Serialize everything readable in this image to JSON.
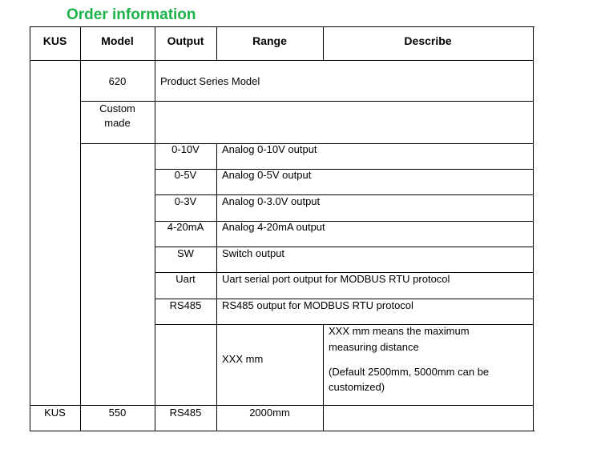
{
  "title": "Order information",
  "headers": [
    "KUS",
    "Model",
    "Output",
    "Range",
    "Describe"
  ],
  "model_rows": [
    {
      "model": "620",
      "describe": "Product Series Model"
    },
    {
      "model": "Custom\nmade",
      "describe": ""
    }
  ],
  "outputs": [
    {
      "code": "0-10V",
      "desc": "Analog 0-10V output"
    },
    {
      "code": "0-5V",
      "desc": "Analog 0-5V output"
    },
    {
      "code": "0-3V",
      "desc": "Analog 0-3.0V output"
    },
    {
      "code": "4-20mA",
      "desc": "Analog 4-20mA output"
    },
    {
      "code": "SW",
      "desc": "Switch output"
    },
    {
      "code": "Uart",
      "desc": "Uart serial port output for MODBUS RTU protocol"
    },
    {
      "code": "RS485",
      "desc": "RS485 output for MODBUS RTU protocol"
    }
  ],
  "range_row": {
    "range": "XXX mm",
    "desc1": "XXX mm means the maximum measuring distance",
    "desc2": "(Default 2500mm, 5000mm can be customized)"
  },
  "example": {
    "kus": "KUS",
    "model": "550",
    "output": "RS485",
    "range": "2000mm",
    "describe": ""
  }
}
